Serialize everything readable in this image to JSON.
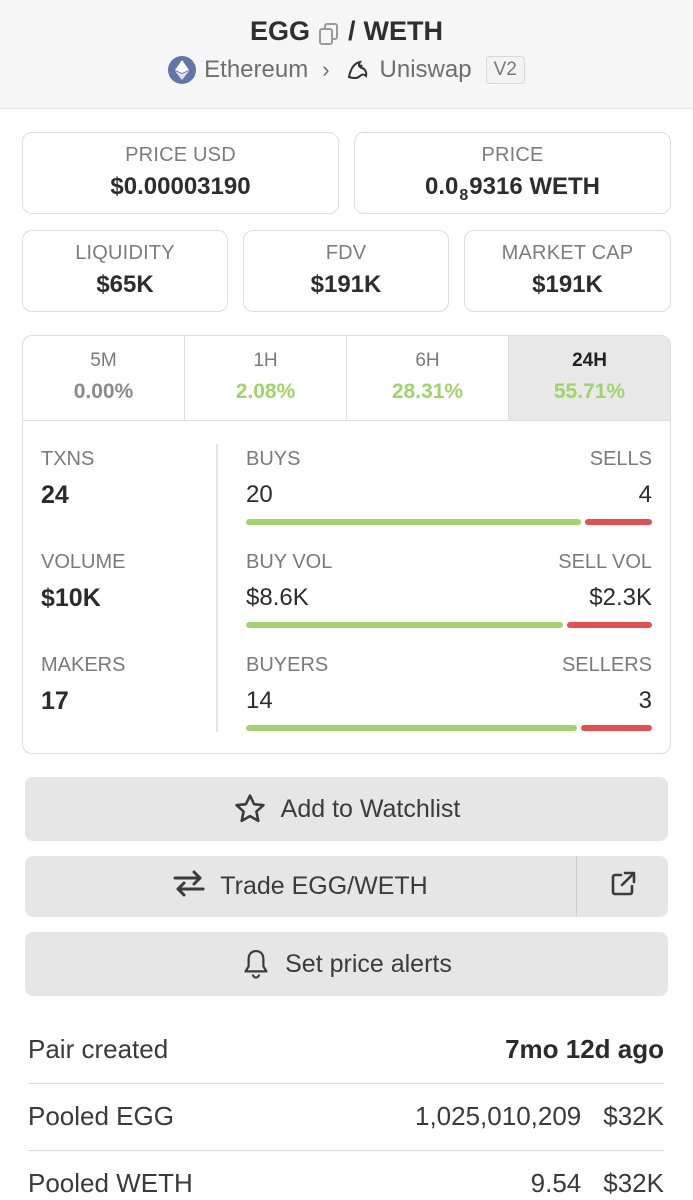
{
  "header": {
    "base_token": "EGG",
    "separator": "/",
    "quote_token": "WETH",
    "chain": "Ethereum",
    "dex": "Uniswap",
    "version": "V2"
  },
  "stats": {
    "price_usd": {
      "label": "PRICE USD",
      "value": "$0.00003190"
    },
    "price_native": {
      "label": "PRICE",
      "value_prefix": "0.0",
      "value_sub": "8",
      "value_suffix": "9316 WETH"
    },
    "liquidity": {
      "label": "LIQUIDITY",
      "value": "$65K"
    },
    "fdv": {
      "label": "FDV",
      "value": "$191K"
    },
    "market_cap": {
      "label": "MARKET CAP",
      "value": "$191K"
    }
  },
  "timeframes": [
    {
      "name": "5M",
      "change": "0.00%"
    },
    {
      "name": "1H",
      "change": "2.08%"
    },
    {
      "name": "6H",
      "change": "28.31%"
    },
    {
      "name": "24H",
      "change": "55.71%",
      "active": true
    }
  ],
  "metrics": {
    "txns": {
      "label": "TXNS",
      "value": "24"
    },
    "volume": {
      "label": "VOLUME",
      "value": "$10K"
    },
    "makers": {
      "label": "MAKERS",
      "value": "17"
    }
  },
  "splits": {
    "txns": {
      "left_label": "BUYS",
      "right_label": "SELLS",
      "left_value": "20",
      "right_value": "4",
      "buy_fraction": 0.833
    },
    "volume": {
      "left_label": "BUY VOL",
      "right_label": "SELL VOL",
      "left_value": "$8.6K",
      "right_value": "$2.3K",
      "buy_fraction": 0.789
    },
    "makers": {
      "left_label": "BUYERS",
      "right_label": "SELLERS",
      "left_value": "14",
      "right_value": "3",
      "buy_fraction": 0.824
    }
  },
  "actions": {
    "watchlist": "Add to Watchlist",
    "trade": "Trade EGG/WETH",
    "alerts": "Set price alerts"
  },
  "info": {
    "pair_created": {
      "label": "Pair created",
      "value": "7mo 12d ago"
    },
    "pooled_base": {
      "label": "Pooled EGG",
      "amount": "1,025,010,209",
      "usd": "$32K"
    },
    "pooled_quote": {
      "label": "Pooled WETH",
      "amount": "9.54",
      "usd": "$32K"
    }
  },
  "colors": {
    "positive": "#a3d36a",
    "negative": "#e64f4f",
    "active_tab": "#e8e8e8"
  }
}
